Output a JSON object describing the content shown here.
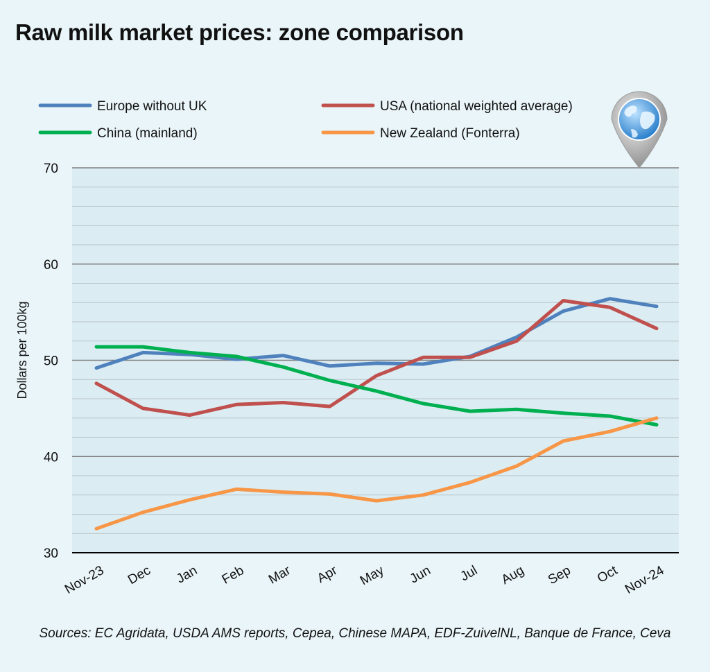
{
  "title": "Raw milk market prices: zone comparison",
  "source": "Sources: EC Agridata, USDA AMS reports, Cepea, Chinese MAPA, EDF-ZuivelNL, Banque de France, Ceva",
  "chart_data": {
    "type": "line",
    "categories": [
      "Nov-23",
      "Dec",
      "Jan",
      "Feb",
      "Mar",
      "Apr",
      "May",
      "Jun",
      "Jul",
      "Aug",
      "Sep",
      "Oct",
      "Nov-24"
    ],
    "ylabel": "Dollars per 100kg",
    "ylim": [
      30,
      70
    ],
    "yticks": [
      30,
      40,
      50,
      60,
      70
    ],
    "grid": true,
    "legend_position": "top",
    "series": [
      {
        "name": "Europe without UK",
        "color": "#4f81bd",
        "values": [
          49.2,
          50.8,
          50.6,
          50.1,
          50.5,
          49.4,
          49.7,
          49.6,
          50.4,
          52.4,
          55.1,
          56.4,
          55.6
        ]
      },
      {
        "name": "USA (national weighted average)",
        "color": "#c0504d",
        "values": [
          47.6,
          45.0,
          44.3,
          45.4,
          45.6,
          45.2,
          48.4,
          50.3,
          50.3,
          52.0,
          56.2,
          55.5,
          53.3
        ]
      },
      {
        "name": "China (mainland)",
        "color": "#00b050",
        "values": [
          51.4,
          51.4,
          50.8,
          50.4,
          49.3,
          47.9,
          46.8,
          45.5,
          44.7,
          44.9,
          44.5,
          44.2,
          43.3
        ]
      },
      {
        "name": "New Zealand (Fonterra)",
        "color": "#f79646",
        "values": [
          32.5,
          34.2,
          35.5,
          36.6,
          36.3,
          36.1,
          35.4,
          36.0,
          37.3,
          39.0,
          41.6,
          42.6,
          44.0
        ]
      }
    ]
  },
  "icons": {
    "globe": "globe-map-pin-icon"
  }
}
